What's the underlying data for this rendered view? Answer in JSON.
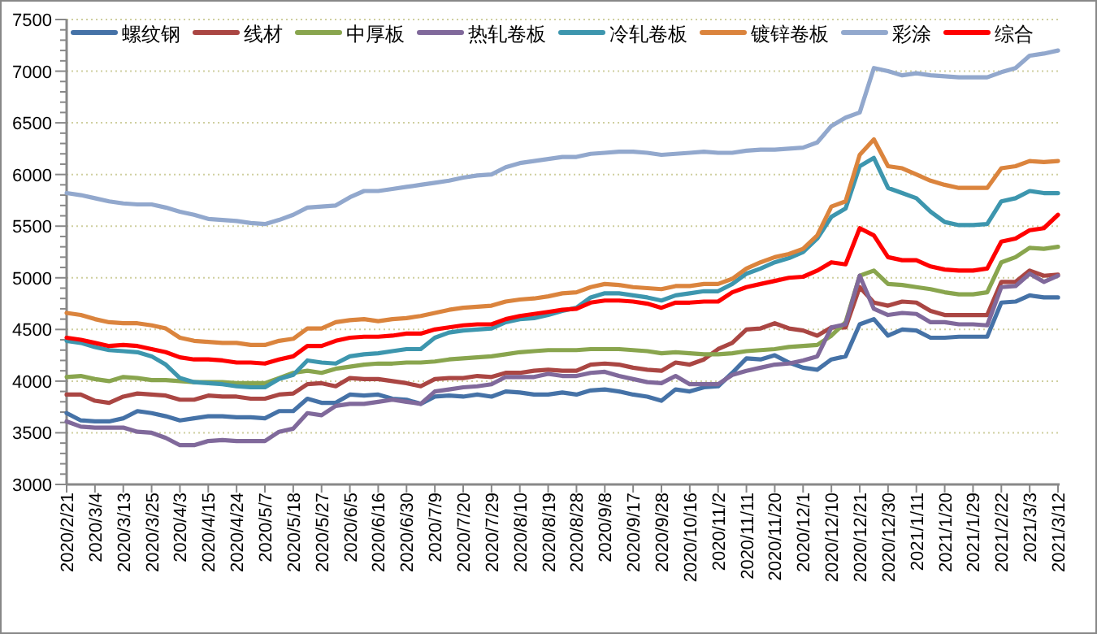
{
  "chart_data": {
    "type": "line",
    "categories": [
      "2020/2/21",
      null,
      "2020/3/4",
      null,
      "2020/3/13",
      null,
      "2020/3/25",
      null,
      "2020/4/3",
      null,
      "2020/4/15",
      null,
      "2020/4/24",
      null,
      "2020/5/7",
      null,
      "2020/5/18",
      null,
      "2020/5/27",
      null,
      "2020/6/5",
      null,
      "2020/6/16",
      null,
      "2020/6/30",
      null,
      "2020/7/9",
      null,
      "2020/7/20",
      null,
      "2020/7/29",
      null,
      "2020/8/10",
      null,
      "2020/8/19",
      null,
      "2020/8/28",
      null,
      "2020/9/8",
      null,
      "2020/9/17",
      null,
      "2020/9/28",
      null,
      "2020/10/16",
      null,
      "2020/11/2",
      null,
      "2020/11/11",
      null,
      "2020/11/20",
      null,
      "2020/12/1",
      null,
      "2020/12/10",
      null,
      "2020/12/21",
      null,
      "2020/12/30",
      null,
      "2021/1/11",
      null,
      "2021/1/20",
      null,
      "2021/1/29",
      null,
      "2021/2/22",
      null,
      "2021/3/3",
      null,
      "2021/3/12"
    ],
    "series": [
      {
        "name": "螺纹钢",
        "color": "#4572a7",
        "values": [
          3690,
          3620,
          3610,
          3610,
          3640,
          3710,
          3690,
          3660,
          3620,
          3640,
          3660,
          3660,
          3650,
          3650,
          3640,
          3710,
          3710,
          3830,
          3790,
          3790,
          3870,
          3860,
          3870,
          3830,
          3820,
          3780,
          3850,
          3860,
          3850,
          3870,
          3850,
          3900,
          3890,
          3870,
          3870,
          3890,
          3870,
          3910,
          3920,
          3900,
          3870,
          3850,
          3810,
          3920,
          3900,
          3940,
          3950,
          4080,
          4220,
          4210,
          4250,
          4180,
          4130,
          4110,
          4210,
          4240,
          4550,
          4600,
          4440,
          4500,
          4490,
          4420,
          4420,
          4430,
          4430,
          4430,
          4760,
          4770,
          4830,
          4810,
          4810
        ]
      },
      {
        "name": "线材",
        "color": "#aa4643",
        "values": [
          3870,
          3870,
          3810,
          3790,
          3850,
          3880,
          3870,
          3860,
          3820,
          3820,
          3860,
          3850,
          3850,
          3830,
          3830,
          3870,
          3880,
          3970,
          3980,
          3950,
          4030,
          4020,
          4020,
          4000,
          3980,
          3950,
          4020,
          4030,
          4030,
          4050,
          4040,
          4080,
          4080,
          4100,
          4110,
          4100,
          4100,
          4160,
          4170,
          4160,
          4130,
          4110,
          4100,
          4180,
          4160,
          4210,
          4310,
          4370,
          4500,
          4510,
          4560,
          4510,
          4490,
          4440,
          4520,
          4520,
          4910,
          4760,
          4730,
          4770,
          4760,
          4680,
          4640,
          4640,
          4640,
          4640,
          4960,
          4960,
          5070,
          5020,
          5030
        ]
      },
      {
        "name": "中厚板",
        "color": "#89a54e",
        "values": [
          4040,
          4050,
          4020,
          4000,
          4040,
          4030,
          4010,
          4010,
          4000,
          3990,
          3990,
          3990,
          3980,
          3980,
          3980,
          4030,
          4080,
          4100,
          4080,
          4120,
          4140,
          4160,
          4170,
          4170,
          4180,
          4180,
          4190,
          4210,
          4220,
          4230,
          4240,
          4260,
          4280,
          4290,
          4300,
          4300,
          4300,
          4310,
          4310,
          4310,
          4300,
          4290,
          4270,
          4280,
          4270,
          4260,
          4260,
          4270,
          4290,
          4300,
          4310,
          4330,
          4340,
          4350,
          4440,
          4570,
          5020,
          5070,
          4940,
          4930,
          4910,
          4890,
          4860,
          4840,
          4840,
          4860,
          5150,
          5200,
          5290,
          5280,
          5300
        ]
      },
      {
        "name": "热轧卷板",
        "color": "#80699b",
        "values": [
          3610,
          3560,
          3550,
          3550,
          3550,
          3510,
          3500,
          3450,
          3380,
          3380,
          3420,
          3430,
          3420,
          3420,
          3420,
          3510,
          3540,
          3690,
          3670,
          3760,
          3780,
          3780,
          3800,
          3820,
          3800,
          3780,
          3900,
          3920,
          3940,
          3950,
          3970,
          4040,
          4040,
          4040,
          4070,
          4050,
          4050,
          4080,
          4090,
          4050,
          4020,
          3990,
          3980,
          4050,
          3970,
          3970,
          3970,
          4060,
          4100,
          4130,
          4160,
          4170,
          4200,
          4240,
          4520,
          4550,
          5020,
          4700,
          4640,
          4660,
          4650,
          4570,
          4570,
          4550,
          4550,
          4540,
          4910,
          4920,
          5040,
          4960,
          5020
        ]
      },
      {
        "name": "冷轧卷板",
        "color": "#3d96ae",
        "values": [
          4390,
          4370,
          4330,
          4300,
          4290,
          4280,
          4240,
          4160,
          4030,
          3990,
          3980,
          3970,
          3950,
          3940,
          3940,
          4020,
          4060,
          4200,
          4180,
          4170,
          4240,
          4260,
          4270,
          4290,
          4310,
          4310,
          4420,
          4470,
          4490,
          4500,
          4510,
          4570,
          4600,
          4610,
          4640,
          4680,
          4710,
          4810,
          4850,
          4850,
          4830,
          4810,
          4780,
          4830,
          4850,
          4870,
          4870,
          4940,
          5040,
          5090,
          5150,
          5190,
          5250,
          5380,
          5590,
          5670,
          6080,
          6160,
          5870,
          5820,
          5770,
          5640,
          5540,
          5510,
          5510,
          5520,
          5740,
          5770,
          5840,
          5820,
          5820
        ]
      },
      {
        "name": "镀锌卷板",
        "color": "#db843d",
        "values": [
          4660,
          4640,
          4600,
          4570,
          4560,
          4560,
          4540,
          4510,
          4420,
          4390,
          4380,
          4370,
          4370,
          4350,
          4350,
          4390,
          4410,
          4510,
          4510,
          4570,
          4590,
          4600,
          4580,
          4600,
          4610,
          4630,
          4660,
          4690,
          4710,
          4720,
          4730,
          4770,
          4790,
          4800,
          4820,
          4850,
          4860,
          4910,
          4940,
          4930,
          4910,
          4900,
          4890,
          4920,
          4920,
          4940,
          4940,
          4990,
          5090,
          5150,
          5200,
          5230,
          5280,
          5410,
          5690,
          5740,
          6190,
          6340,
          6080,
          6060,
          6000,
          5940,
          5900,
          5870,
          5870,
          5870,
          6060,
          6080,
          6130,
          6120,
          6130
        ]
      },
      {
        "name": "彩涂",
        "color": "#92a8cd",
        "values": [
          5820,
          5800,
          5770,
          5740,
          5720,
          5710,
          5710,
          5680,
          5640,
          5610,
          5570,
          5560,
          5550,
          5530,
          5520,
          5560,
          5610,
          5680,
          5690,
          5700,
          5780,
          5840,
          5840,
          5860,
          5880,
          5900,
          5920,
          5940,
          5970,
          5990,
          6000,
          6070,
          6110,
          6130,
          6150,
          6170,
          6170,
          6200,
          6210,
          6220,
          6220,
          6210,
          6190,
          6200,
          6210,
          6220,
          6210,
          6210,
          6230,
          6240,
          6240,
          6250,
          6260,
          6310,
          6470,
          6550,
          6600,
          7030,
          7000,
          6960,
          6980,
          6960,
          6950,
          6940,
          6940,
          6940,
          6990,
          7030,
          7150,
          7170,
          7200
        ]
      },
      {
        "name": "综合",
        "color": "#ff0000",
        "values": [
          4420,
          4400,
          4370,
          4340,
          4350,
          4340,
          4310,
          4280,
          4230,
          4210,
          4210,
          4200,
          4180,
          4180,
          4170,
          4210,
          4240,
          4340,
          4340,
          4390,
          4420,
          4430,
          4430,
          4440,
          4460,
          4460,
          4500,
          4520,
          4540,
          4550,
          4550,
          4600,
          4630,
          4650,
          4670,
          4690,
          4700,
          4760,
          4780,
          4780,
          4770,
          4750,
          4710,
          4760,
          4760,
          4770,
          4770,
          4860,
          4910,
          4940,
          4970,
          5000,
          5010,
          5070,
          5150,
          5130,
          5480,
          5410,
          5200,
          5170,
          5170,
          5110,
          5080,
          5070,
          5070,
          5090,
          5350,
          5380,
          5460,
          5480,
          5610
        ]
      }
    ],
    "ylim": [
      3000,
      7500
    ],
    "yticks": [
      3000,
      {
        "value": 3100,
        "label": null
      },
      {
        "value": 3200,
        "label": null
      },
      {
        "value": 3300,
        "label": null
      },
      {
        "value": 3400,
        "label": null
      },
      3500,
      {
        "value": 3600,
        "label": null
      },
      {
        "value": 3700,
        "label": null
      },
      {
        "value": 3800,
        "label": null
      },
      {
        "value": 3900,
        "label": null
      },
      4000,
      {
        "value": 4100,
        "label": null
      },
      {
        "value": 4200,
        "label": null
      },
      {
        "value": 4300,
        "label": null
      },
      {
        "value": 4400,
        "label": null
      },
      4500,
      {
        "value": 4600,
        "label": null
      },
      {
        "value": 4700,
        "label": null
      },
      {
        "value": 4800,
        "label": null
      },
      {
        "value": 4900,
        "label": null
      },
      5000,
      {
        "value": 5100,
        "label": null
      },
      {
        "value": 5200,
        "label": null
      },
      {
        "value": 5300,
        "label": null
      },
      {
        "value": 5400,
        "label": null
      },
      5500,
      {
        "value": 5600,
        "label": null
      },
      {
        "value": 5700,
        "label": null
      },
      {
        "value": 5800,
        "label": null
      },
      {
        "value": 5900,
        "label": null
      },
      6000,
      {
        "value": 6100,
        "label": null
      },
      {
        "value": 6200,
        "label": null
      },
      {
        "value": 6300,
        "label": null
      },
      {
        "value": 6400,
        "label": null
      },
      6500,
      {
        "value": 6600,
        "label": null
      },
      {
        "value": 6700,
        "label": null
      },
      {
        "value": 6800,
        "label": null
      },
      {
        "value": 6900,
        "label": null
      },
      7000,
      {
        "value": 7100,
        "label": null
      },
      {
        "value": 7200,
        "label": null
      },
      {
        "value": 7300,
        "label": null
      },
      {
        "value": 7400,
        "label": null
      },
      7500
    ],
    "grid": "y",
    "legend": "top"
  }
}
